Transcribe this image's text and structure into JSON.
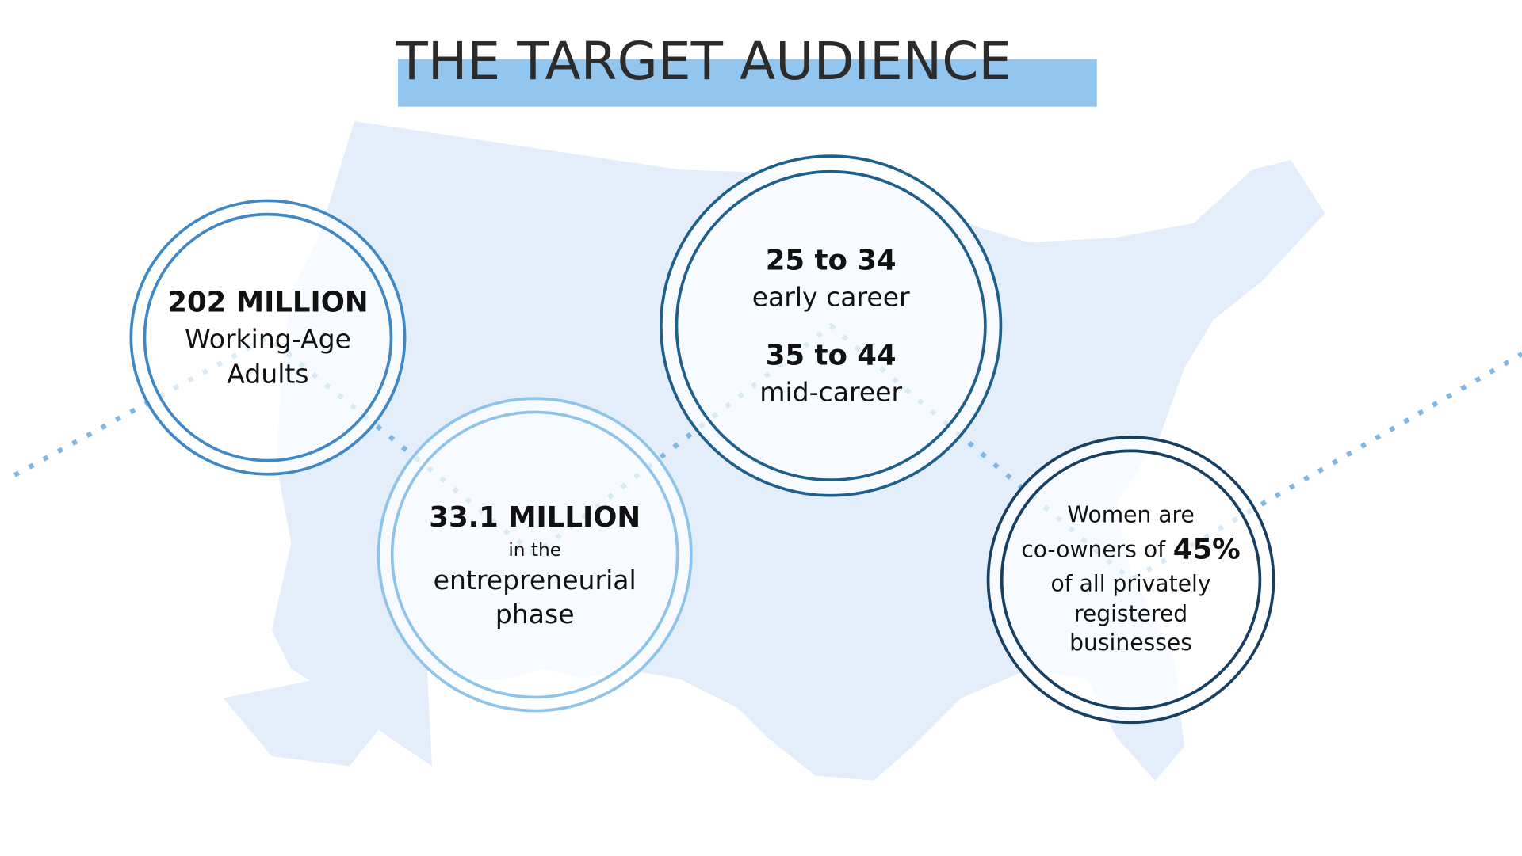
{
  "header": {
    "title": "THE TARGET AUDIENCE"
  },
  "circles": [
    {
      "lines": [
        "202 MILLION",
        "Working-Age",
        "Adults"
      ]
    },
    {
      "lines": [
        "33.1 MILLION",
        "in the",
        "entrepreneurial",
        "phase"
      ]
    },
    {
      "lines": [
        "25 to 34",
        "early career",
        "35 to 44",
        "mid-career"
      ]
    },
    {
      "lines": [
        "Women are",
        "co-owners of",
        "45%",
        "of all privately",
        "registered",
        "businesses"
      ]
    }
  ]
}
